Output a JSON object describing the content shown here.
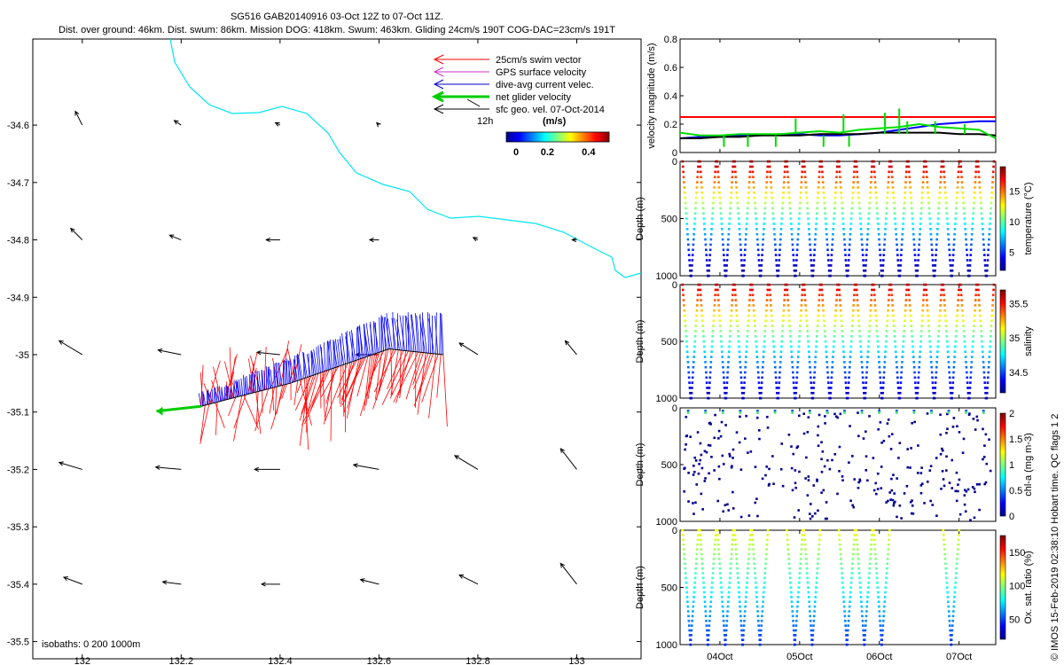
{
  "header": {
    "title_line1": "SG516 GAB20140916 03-Oct 12Z to 07-Oct 11Z.",
    "title_line2": "Dist. over ground: 46km. Dist. swum: 86km. Mission DOG: 418km. Swum: 463km. Gliding 24cm/s 190T COG-DAC=23cm/s 191T"
  },
  "legend": {
    "items": [
      {
        "label": "25cm/s swim vector",
        "color": "#ff0000"
      },
      {
        "label": "GPS surface velocity",
        "color": "#cc33cc"
      },
      {
        "label": "dive-avg current velec.",
        "color": "#0000cc"
      },
      {
        "label": "net glider velocity",
        "color": "#00cc00"
      },
      {
        "label": "sfc geo. vel. 07-Oct-2014",
        "color": "#000000"
      }
    ],
    "small_label": "12h",
    "colorbar_unit": "(m/s)",
    "colorbar_ticks": [
      "0",
      "0.2",
      "0.4"
    ]
  },
  "map": {
    "isobaths_label": "isobaths: 0   200   1000m",
    "lon_ticks": [
      "132",
      "132.2",
      "132.4",
      "132.6",
      "132.8",
      "133"
    ],
    "lat_ticks": [
      "-34.6",
      "-34.7",
      "-34.8",
      "-34.9",
      "-35",
      "-35.1",
      "-35.2",
      "-35.3",
      "-35.4",
      "-35.5"
    ],
    "xlim": [
      131.9,
      133.13
    ],
    "ylim": [
      -35.53,
      -34.45
    ],
    "isobath_color": "#00e5ee"
  },
  "watermark": "© IMOS 15-Feb-2019 02:38:10 Hobart time. QC flags 1  2",
  "panels": {
    "velocity": {
      "ylabel": "velocity magnitude (m/s)",
      "yticks": [
        "0",
        "0.2",
        "0.4",
        "0.6",
        "0.8"
      ]
    },
    "temperature": {
      "ylabel": "Depth (m)",
      "yticks": [
        "0",
        "500",
        "1000"
      ],
      "cblabel": "temperature (°C)",
      "cbticks": [
        "5",
        "10",
        "15"
      ]
    },
    "salinity": {
      "ylabel": "Depth (m)",
      "yticks": [
        "0",
        "500",
        "1000"
      ],
      "cblabel": "salinity",
      "cbticks": [
        "34.5",
        "35",
        "35.5"
      ]
    },
    "chla": {
      "ylabel": "Depth (m)",
      "yticks": [
        "0",
        "500",
        "1000"
      ],
      "cblabel": "chl-a (mg m-3)",
      "cbticks": [
        "0",
        "0.5",
        "1",
        "1.5",
        "2"
      ]
    },
    "oxygen": {
      "ylabel": "Depth (m)",
      "yticks": [
        "0",
        "500",
        "1000"
      ],
      "cblabel": "Ox. sat. ratio (%)",
      "cbticks": [
        "50",
        "100",
        "150"
      ]
    },
    "time_ticks": [
      "04Oct",
      "05Oct",
      "06Oct",
      "07Oct"
    ]
  },
  "chart_data": [
    {
      "type": "scatter",
      "name": "map",
      "xlim": [
        131.9,
        133.13
      ],
      "ylim": [
        -35.53,
        -34.45
      ],
      "grid": false,
      "legend": "top-right",
      "sfc_geo_vel_arrows": [
        {
          "lon": 132.0,
          "lat": -34.6,
          "u": -0.3,
          "v": 0.6
        },
        {
          "lon": 132.2,
          "lat": -34.6,
          "u": -0.3,
          "v": 0.2
        },
        {
          "lon": 132.4,
          "lat": -34.6,
          "u": -0.2,
          "v": 0.1
        },
        {
          "lon": 132.6,
          "lat": -34.6,
          "u": -0.1,
          "v": 0.1
        },
        {
          "lon": 132.0,
          "lat": -34.8,
          "u": -0.5,
          "v": 0.5
        },
        {
          "lon": 132.2,
          "lat": -34.8,
          "u": -0.5,
          "v": 0.2
        },
        {
          "lon": 132.4,
          "lat": -34.8,
          "u": -0.6,
          "v": 0.0
        },
        {
          "lon": 132.6,
          "lat": -34.8,
          "u": -0.4,
          "v": 0.0
        },
        {
          "lon": 132.8,
          "lat": -34.8,
          "u": -0.2,
          "v": 0.1
        },
        {
          "lon": 133.0,
          "lat": -34.8,
          "u": -0.2,
          "v": 0.0
        },
        {
          "lon": 132.0,
          "lat": -35.0,
          "u": -1.0,
          "v": 0.6
        },
        {
          "lon": 132.2,
          "lat": -35.0,
          "u": -1.0,
          "v": 0.2
        },
        {
          "lon": 132.4,
          "lat": -35.0,
          "u": -1.0,
          "v": 0.1
        },
        {
          "lon": 132.6,
          "lat": -35.0,
          "u": -1.0,
          "v": 0.0
        },
        {
          "lon": 132.8,
          "lat": -35.0,
          "u": -0.8,
          "v": 0.5
        },
        {
          "lon": 133.0,
          "lat": -35.0,
          "u": -0.5,
          "v": 0.6
        },
        {
          "lon": 132.0,
          "lat": -35.2,
          "u": -1.0,
          "v": 0.3
        },
        {
          "lon": 132.2,
          "lat": -35.2,
          "u": -1.1,
          "v": 0.1
        },
        {
          "lon": 132.4,
          "lat": -35.2,
          "u": -1.1,
          "v": 0.0
        },
        {
          "lon": 132.6,
          "lat": -35.2,
          "u": -1.1,
          "v": 0.2
        },
        {
          "lon": 132.8,
          "lat": -35.2,
          "u": -1.0,
          "v": 0.6
        },
        {
          "lon": 133.0,
          "lat": -35.2,
          "u": -0.7,
          "v": 0.9
        },
        {
          "lon": 132.0,
          "lat": -35.4,
          "u": -0.8,
          "v": 0.3
        },
        {
          "lon": 132.2,
          "lat": -35.4,
          "u": -0.8,
          "v": 0.1
        },
        {
          "lon": 132.4,
          "lat": -35.4,
          "u": -0.8,
          "v": 0.0
        },
        {
          "lon": 132.6,
          "lat": -35.4,
          "u": -0.8,
          "v": 0.2
        },
        {
          "lon": 132.8,
          "lat": -35.4,
          "u": -0.8,
          "v": 0.4
        },
        {
          "lon": 133.0,
          "lat": -35.4,
          "u": -0.7,
          "v": 0.9
        }
      ],
      "glider_track": [
        {
          "lon": 132.73,
          "lat": -35.0
        },
        {
          "lon": 132.62,
          "lat": -34.99
        },
        {
          "lon": 132.52,
          "lat": -35.02
        },
        {
          "lon": 132.42,
          "lat": -35.05
        },
        {
          "lon": 132.33,
          "lat": -35.07
        },
        {
          "lon": 132.24,
          "lat": -35.09
        }
      ],
      "net_glider_velocity": {
        "lon": 132.24,
        "lat": -35.09,
        "u": -0.09,
        "v": -0.01
      }
    },
    {
      "type": "line",
      "name": "velocity",
      "x": [
        3.5,
        3.75,
        4.0,
        4.25,
        4.5,
        4.75,
        5.0,
        5.25,
        5.5,
        5.75,
        6.0,
        6.25,
        6.5,
        6.75,
        7.0,
        7.25,
        7.46
      ],
      "xlim": [
        3.5,
        7.46
      ],
      "ylim": [
        0,
        0.8
      ],
      "series": [
        {
          "color": "#ff0000",
          "values": [
            0.25,
            0.25,
            0.25,
            0.25,
            0.25,
            0.25,
            0.25,
            0.25,
            0.25,
            0.25,
            0.25,
            0.25,
            0.25,
            0.25,
            0.25,
            0.25,
            0.25
          ]
        },
        {
          "color": "#0000ff",
          "values": [
            0.1,
            0.11,
            0.11,
            0.12,
            0.12,
            0.13,
            0.13,
            0.12,
            0.12,
            0.13,
            0.14,
            0.16,
            0.18,
            0.2,
            0.21,
            0.22,
            0.22
          ]
        },
        {
          "color": "#000000",
          "values": [
            0.1,
            0.1,
            0.11,
            0.11,
            0.12,
            0.12,
            0.12,
            0.13,
            0.13,
            0.13,
            0.14,
            0.14,
            0.14,
            0.14,
            0.13,
            0.13,
            0.12
          ]
        },
        {
          "color": "#00dd00",
          "values": [
            0.14,
            0.12,
            0.12,
            0.13,
            0.13,
            0.13,
            0.14,
            0.15,
            0.14,
            0.16,
            0.17,
            0.18,
            0.2,
            0.18,
            0.17,
            0.16,
            0.1
          ]
        }
      ]
    },
    {
      "type": "scatter",
      "name": "temperature",
      "ylim": [
        1000,
        0
      ],
      "xlim": [
        3.5,
        7.46
      ],
      "clim": [
        2,
        19
      ]
    },
    {
      "type": "scatter",
      "name": "salinity",
      "ylim": [
        1000,
        0
      ],
      "xlim": [
        3.5,
        7.46
      ],
      "clim": [
        34.2,
        35.7
      ]
    },
    {
      "type": "scatter",
      "name": "chl-a",
      "ylim": [
        1000,
        0
      ],
      "xlim": [
        3.5,
        7.46
      ],
      "clim": [
        0,
        2
      ]
    },
    {
      "type": "scatter",
      "name": "oxygen",
      "ylim": [
        1000,
        0
      ],
      "xlim": [
        3.5,
        7.46
      ],
      "clim": [
        20,
        175
      ]
    }
  ]
}
